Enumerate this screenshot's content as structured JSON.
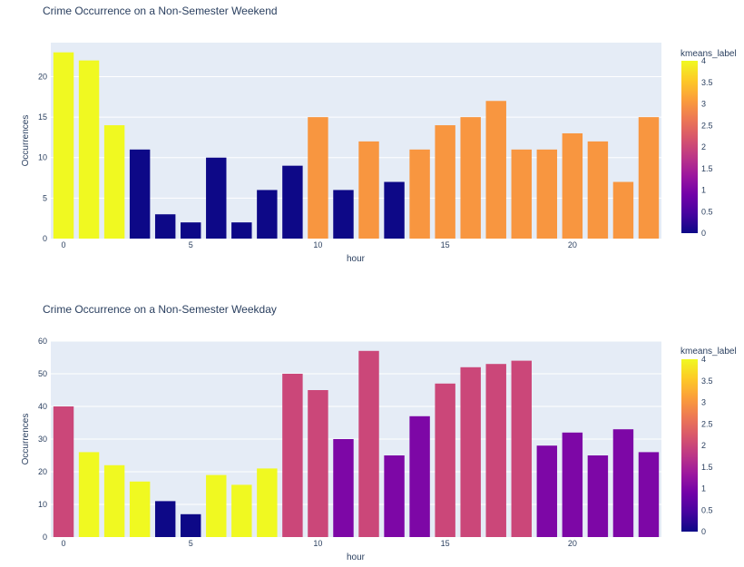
{
  "chart_data": [
    {
      "type": "bar",
      "title": "Crime Occurrence on a Non-Semester Weekend",
      "xlabel": "hour",
      "ylabel": "Occurrences",
      "x": [
        0,
        1,
        2,
        3,
        4,
        5,
        6,
        7,
        8,
        9,
        10,
        11,
        12,
        13,
        14,
        15,
        16,
        17,
        18,
        19,
        20,
        21,
        22,
        23
      ],
      "values": [
        23,
        22,
        14,
        11,
        3,
        2,
        10,
        2,
        6,
        9,
        15,
        6,
        12,
        7,
        11,
        14,
        15,
        17,
        11,
        11,
        13,
        12,
        7,
        15
      ],
      "color_values": [
        4,
        4,
        4,
        0,
        0,
        0,
        0,
        0,
        0,
        0,
        3,
        0,
        3,
        0,
        3,
        3,
        3,
        3,
        3,
        3,
        3,
        3,
        3,
        3
      ],
      "xlim": [
        -0.5,
        23.5
      ],
      "ylim": [
        0,
        24.2
      ],
      "x_ticks": [
        0,
        5,
        10,
        15,
        20
      ],
      "y_ticks": [
        0,
        5,
        10,
        15,
        20
      ],
      "grid": true,
      "colorbar": {
        "title": "kmeans_label",
        "range": [
          0,
          4
        ],
        "ticks": [
          0,
          0.5,
          1,
          1.5,
          2,
          2.5,
          3,
          3.5,
          4
        ],
        "tick_labels": [
          "0",
          "0.5",
          "1",
          "1.5",
          "2",
          "2.5",
          "3",
          "3.5",
          "4"
        ]
      }
    },
    {
      "type": "bar",
      "title": "Crime Occurrence on a Non-Semester Weekday",
      "xlabel": "hour",
      "ylabel": "Occurrences",
      "x": [
        0,
        1,
        2,
        3,
        4,
        5,
        6,
        7,
        8,
        9,
        10,
        11,
        12,
        13,
        14,
        15,
        16,
        17,
        18,
        19,
        20,
        21,
        22,
        23
      ],
      "values": [
        40,
        26,
        22,
        17,
        11,
        7,
        19,
        16,
        21,
        50,
        45,
        30,
        57,
        25,
        37,
        47,
        52,
        53,
        54,
        28,
        32,
        25,
        33,
        26
      ],
      "color_values": [
        2,
        4,
        4,
        4,
        0,
        0,
        4,
        4,
        4,
        2,
        2,
        1,
        2,
        1,
        1,
        2,
        2,
        2,
        2,
        1,
        1,
        1,
        1,
        1
      ],
      "xlim": [
        -0.5,
        23.5
      ],
      "ylim": [
        0,
        60
      ],
      "x_ticks": [
        0,
        5,
        10,
        15,
        20
      ],
      "y_ticks": [
        0,
        10,
        20,
        30,
        40,
        50,
        60
      ],
      "grid": true,
      "colorbar": {
        "title": "kmeans_label",
        "range": [
          0,
          4
        ],
        "ticks": [
          0,
          0.5,
          1,
          1.5,
          2,
          2.5,
          3,
          3.5,
          4
        ],
        "tick_labels": [
          "0",
          "0.5",
          "1",
          "1.5",
          "2",
          "2.5",
          "3",
          "3.5",
          "4"
        ]
      }
    }
  ],
  "colors": {
    "plot_background": "#E5ECF6",
    "gridline": "#ffffff",
    "text": "#2a3f5f",
    "colorscale_plasma": [
      "#0d0887",
      "#46039f",
      "#7201a8",
      "#9c179e",
      "#bd3786",
      "#d8576b",
      "#ed7953",
      "#fb9f3a",
      "#fdca26",
      "#f0f921"
    ]
  }
}
